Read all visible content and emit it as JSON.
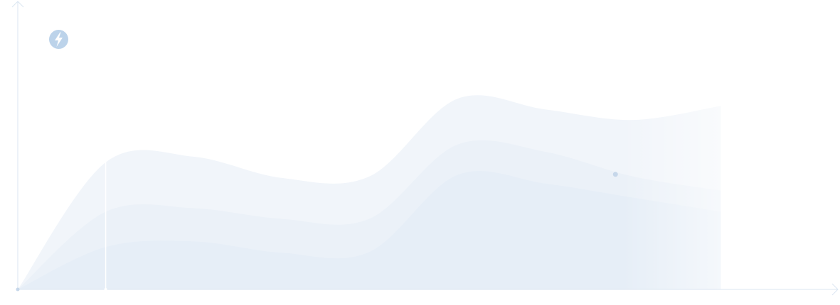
{
  "chart_data": {
    "type": "area",
    "title": "",
    "xlabel": "",
    "ylabel": "",
    "x": [
      0,
      1,
      2,
      3,
      4,
      5,
      6,
      7,
      8
    ],
    "xlim": [
      0,
      9.25
    ],
    "ylim": [
      0,
      410
    ],
    "grid": false,
    "legend": "none",
    "series": [
      {
        "values": [
          0,
          180,
          188,
          158,
          160,
          270,
          255,
          240,
          260
        ],
        "color": "#f1f5fa"
      },
      {
        "values": [
          0,
          110,
          115,
          100,
          100,
          205,
          195,
          160,
          140
        ],
        "color": "#ebf1f8"
      },
      {
        "values": [
          0,
          60,
          68,
          52,
          53,
          162,
          150,
          130,
          110
        ],
        "color": "#e6eef7"
      }
    ],
    "marker": {
      "x": 6.8,
      "y": 163,
      "color": "#c6d7ea"
    },
    "divider_x": 1,
    "axis_color": "#dbe6f2",
    "fade_color": "#ffffff"
  },
  "logo": {
    "icon": "lightning-bolt-icon",
    "color": "#bcd3ea"
  }
}
